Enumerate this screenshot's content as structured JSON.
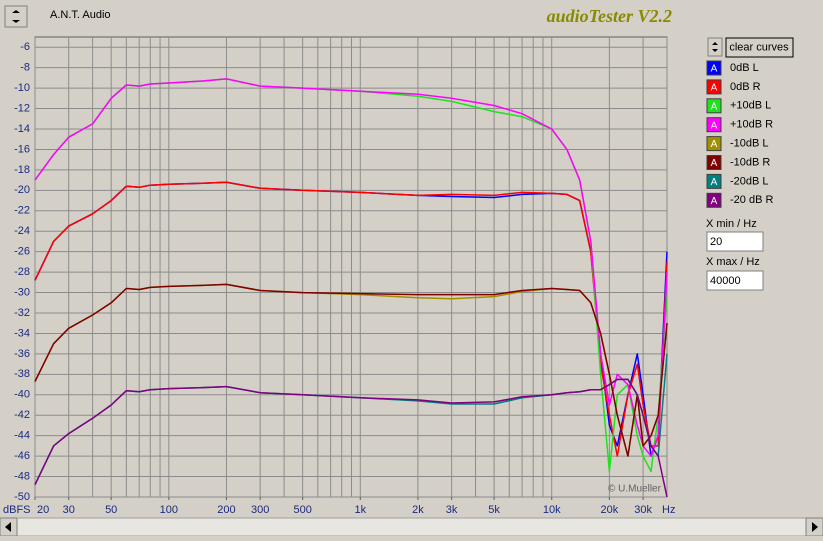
{
  "app": {
    "company": "A.N.T. Audio",
    "watermark": "© U.Mueller",
    "clear_button": "clear curves",
    "xmin_label": "X min / Hz",
    "xmin_value": 20,
    "xmax_label": "X max / Hz",
    "xmax_value": 40000,
    "legend_icon": "A"
  },
  "chart_data": {
    "type": "line",
    "title": "audioTester V2.2",
    "y_label": "dBFS",
    "x_label": "Hz",
    "log_x": true,
    "grid": true,
    "xlim": [
      20,
      40000
    ],
    "ylim": [
      -50,
      -5
    ],
    "xticks": [
      20,
      30,
      50,
      100,
      200,
      300,
      500,
      {
        "value": 1000,
        "label": "1k"
      },
      {
        "value": 2000,
        "label": "2k"
      },
      {
        "value": 3000,
        "label": "3k"
      },
      {
        "value": 5000,
        "label": "5k"
      },
      {
        "value": 10000,
        "label": "10k"
      },
      {
        "value": 20000,
        "label": "20k"
      },
      {
        "value": 30000,
        "label": "30k"
      }
    ],
    "xgrid": [
      20,
      30,
      40,
      50,
      60,
      70,
      80,
      90,
      100,
      200,
      300,
      400,
      500,
      600,
      700,
      800,
      900,
      1000,
      2000,
      3000,
      4000,
      5000,
      6000,
      7000,
      8000,
      9000,
      10000,
      20000,
      30000,
      40000
    ],
    "yticks": [
      -6,
      -8,
      -10,
      -12,
      -14,
      -16,
      -18,
      -20,
      -22,
      -24,
      -26,
      -28,
      -30,
      -32,
      -34,
      -36,
      -38,
      -40,
      -42,
      -44,
      -46,
      -48,
      -50
    ],
    "x": [
      20,
      25,
      30,
      40,
      50,
      60,
      70,
      80,
      100,
      150,
      200,
      300,
      500,
      1000,
      2000,
      3000,
      5000,
      7000,
      10000,
      12000,
      14000,
      16000,
      18000,
      20000,
      22000,
      25000,
      28000,
      30000,
      33000,
      36000,
      40000
    ],
    "series": [
      {
        "name": "0dB L",
        "color": "#0000ff",
        "values": [
          -28.8,
          -25,
          -23.5,
          -22.3,
          -21,
          -19.6,
          -19.7,
          -19.5,
          -19.4,
          -19.3,
          -19.2,
          -19.8,
          -20,
          -20.2,
          -20.5,
          -20.6,
          -20.7,
          -20.4,
          -20.3,
          -20.4,
          -21,
          -26,
          -36,
          -43,
          -45,
          -40,
          -36,
          -40,
          -46,
          -44,
          -26
        ]
      },
      {
        "name": "0dB R",
        "color": "#ff0000",
        "values": [
          -28.8,
          -25,
          -23.5,
          -22.3,
          -21,
          -19.6,
          -19.7,
          -19.5,
          -19.4,
          -19.3,
          -19.2,
          -19.8,
          -20,
          -20.2,
          -20.5,
          -20.4,
          -20.5,
          -20.2,
          -20.3,
          -20.4,
          -21,
          -26,
          -37,
          -42,
          -46,
          -40,
          -37,
          -41,
          -45,
          -45,
          -27
        ]
      },
      {
        "name": "+10dB L",
        "color": "#20e020",
        "values": [
          -19,
          -16.5,
          -14.8,
          -13.5,
          -11,
          -9.7,
          -9.8,
          -9.6,
          -9.5,
          -9.3,
          -9.1,
          -9.8,
          -10,
          -10.3,
          -10.8,
          -11.3,
          -12.3,
          -12.8,
          -14,
          -16,
          -19,
          -25,
          -38,
          -47.5,
          -40,
          -39,
          -44,
          -46,
          -47.5,
          -42,
          -30
        ]
      },
      {
        "name": "+10dB R",
        "color": "#ff00ff",
        "values": [
          -19,
          -16.5,
          -14.8,
          -13.5,
          -11,
          -9.7,
          -9.8,
          -9.6,
          -9.5,
          -9.3,
          -9.1,
          -9.8,
          -10,
          -10.3,
          -10.6,
          -11,
          -11.7,
          -12.5,
          -14,
          -16,
          -19,
          -25,
          -36,
          -41,
          -38,
          -39,
          -43,
          -45,
          -46,
          -44,
          -28
        ]
      },
      {
        "name": "-10dB L",
        "color": "#a09000",
        "values": [
          -38.7,
          -35,
          -33.5,
          -32.2,
          -31,
          -29.6,
          -29.7,
          -29.5,
          -29.4,
          -29.3,
          -29.2,
          -29.8,
          -30,
          -30.2,
          -30.5,
          -30.6,
          -30.4,
          -29.9,
          -29.6,
          -29.7,
          -29.8,
          -31,
          -34,
          -38,
          -42,
          -46,
          -40,
          -45,
          -44,
          -42,
          -33
        ]
      },
      {
        "name": "-10dB R",
        "color": "#800000",
        "values": [
          -38.7,
          -35,
          -33.5,
          -32.2,
          -31,
          -29.6,
          -29.7,
          -29.5,
          -29.4,
          -29.3,
          -29.2,
          -29.8,
          -30,
          -30.1,
          -30.2,
          -30.2,
          -30.2,
          -29.8,
          -29.6,
          -29.7,
          -29.8,
          -31,
          -34,
          -38,
          -42,
          -46,
          -40,
          -45,
          -44,
          -42,
          -33
        ]
      },
      {
        "name": "-20dB L",
        "color": "#008080",
        "values": [
          -48.8,
          -45,
          -43.8,
          -42.3,
          -41,
          -39.6,
          -39.7,
          -39.5,
          -39.4,
          -39.3,
          -39.2,
          -39.8,
          -40,
          -40.3,
          -40.6,
          -40.9,
          -40.9,
          -40.3,
          -40,
          -39.8,
          -39.7,
          -39.5,
          -39.5,
          -39,
          -38.5,
          -38.5,
          -40,
          -42,
          -45,
          -46,
          -36
        ]
      },
      {
        "name": "-20 dB R",
        "color": "#800080",
        "values": [
          -48.8,
          -45,
          -43.8,
          -42.3,
          -41,
          -39.6,
          -39.7,
          -39.5,
          -39.4,
          -39.3,
          -39.2,
          -39.8,
          -40,
          -40.3,
          -40.5,
          -40.8,
          -40.7,
          -40.2,
          -40,
          -39.8,
          -39.7,
          -39.5,
          -39.5,
          -39,
          -38.5,
          -38.5,
          -40,
          -42,
          -45,
          -46,
          -50
        ]
      }
    ]
  }
}
